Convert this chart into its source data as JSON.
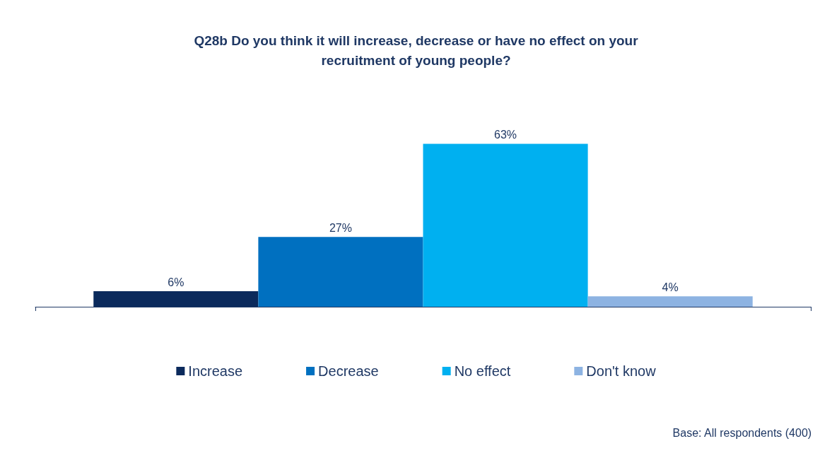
{
  "chart_data": {
    "type": "bar",
    "title": "Q28b Do you think it will increase, decrease or have no effect on your\nrecruitment of young people?",
    "categories": [
      null
    ],
    "series": [
      {
        "name": "Increase",
        "color": "#0b2a5c",
        "values": [
          6
        ],
        "value_labels": [
          "6%"
        ]
      },
      {
        "name": "Decrease",
        "color": "#0070c0",
        "values": [
          27
        ],
        "value_labels": [
          "27%"
        ]
      },
      {
        "name": "No effect",
        "color": "#00b0f0",
        "values": [
          63
        ],
        "value_labels": [
          "63%"
        ]
      },
      {
        "name": "Don't know",
        "color": "#8db3e2",
        "values": [
          4
        ],
        "value_labels": [
          "4%"
        ]
      }
    ],
    "legend": "bottom",
    "grid": false,
    "annotations": [
      "Base: All respondents (400)"
    ]
  }
}
